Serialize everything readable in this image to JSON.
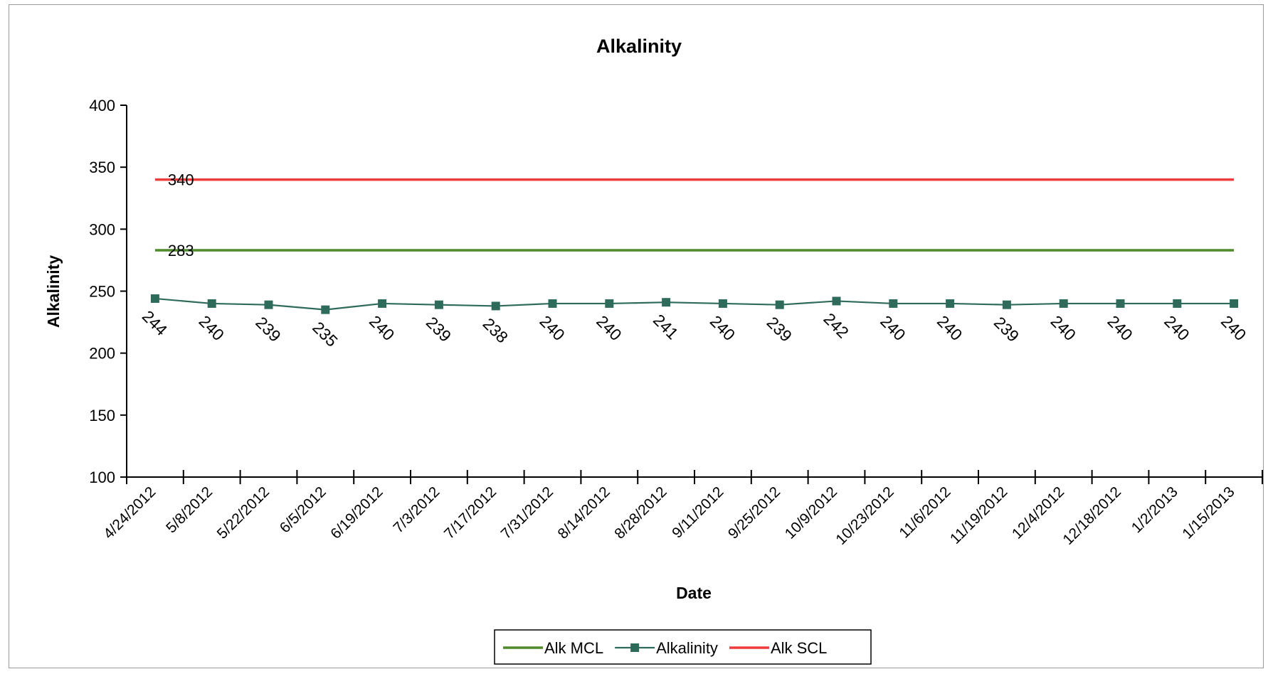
{
  "chart_data": {
    "type": "line",
    "title": "Alkalinity",
    "xlabel": "Date",
    "ylabel": "Alkalinity",
    "ylim": [
      100,
      400
    ],
    "yticks": [
      100,
      150,
      200,
      250,
      300,
      350,
      400
    ],
    "grid": false,
    "legend_position": "bottom",
    "categories": [
      "4/24/2012",
      "5/8/2012",
      "5/22/2012",
      "6/5/2012",
      "6/19/2012",
      "7/3/2012",
      "7/17/2012",
      "7/31/2012",
      "8/14/2012",
      "8/28/2012",
      "9/11/2012",
      "9/25/2012",
      "10/9/2012",
      "10/23/2012",
      "11/6/2012",
      "11/19/2012",
      "12/4/2012",
      "12/18/2012",
      "1/2/2013",
      "1/15/2013"
    ],
    "series": [
      {
        "name": "Alk MCL",
        "color": "#4f8a2b",
        "marker": "none",
        "values": [
          283,
          283,
          283,
          283,
          283,
          283,
          283,
          283,
          283,
          283,
          283,
          283,
          283,
          283,
          283,
          283,
          283,
          283,
          283,
          283
        ],
        "labels": [
          "283"
        ]
      },
      {
        "name": "Alkalinity",
        "color": "#2e6b5a",
        "marker": "square",
        "values": [
          244,
          240,
          239,
          235,
          240,
          239,
          238,
          240,
          240,
          241,
          240,
          239,
          242,
          240,
          240,
          239,
          240,
          240,
          240,
          240
        ],
        "labels": [
          "244",
          "240",
          "239",
          "235",
          "240",
          "239",
          "238",
          "240",
          "240",
          "241",
          "240",
          "239",
          "242",
          "240",
          "240",
          "239",
          "240",
          "240",
          "240",
          "240"
        ]
      },
      {
        "name": "Alk SCL",
        "color": "#ee3b3b",
        "marker": "none",
        "values": [
          340,
          340,
          340,
          340,
          340,
          340,
          340,
          340,
          340,
          340,
          340,
          340,
          340,
          340,
          340,
          340,
          340,
          340,
          340,
          340
        ],
        "labels": [
          "340"
        ]
      }
    ]
  }
}
